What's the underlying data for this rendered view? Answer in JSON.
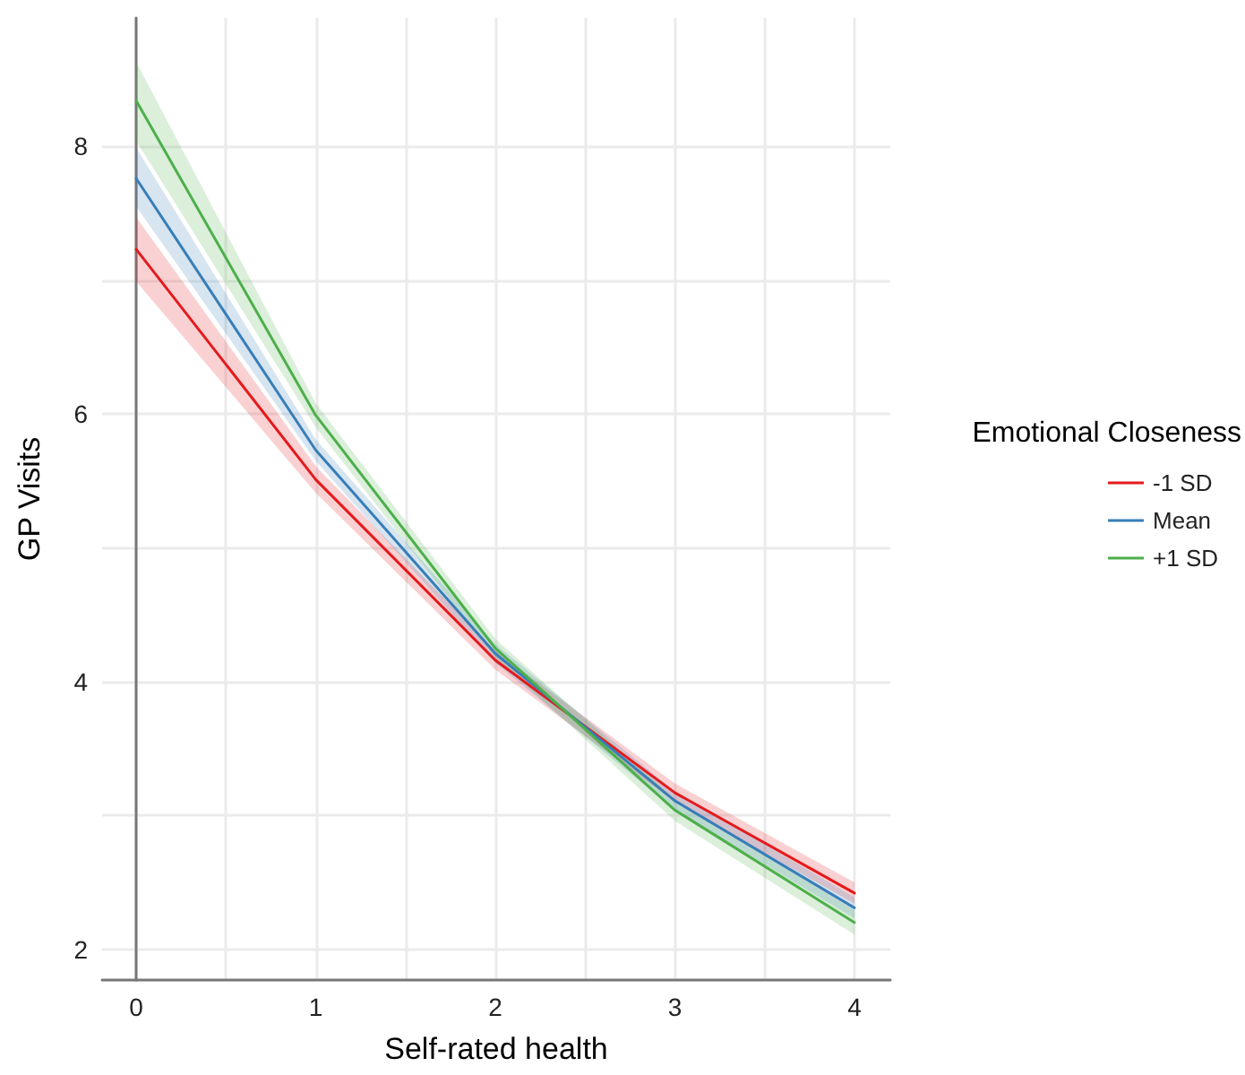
{
  "chart_data": {
    "type": "line",
    "xlabel": "Self-rated health",
    "ylabel": "GP Visits",
    "legend_title": "Emotional Closeness",
    "legend": "right",
    "x": [
      0,
      1,
      2,
      3,
      4
    ],
    "series": [
      {
        "name": "-1 SD",
        "color": "#e41a1c",
        "values": [
          7.23,
          5.51,
          4.16,
          3.17,
          2.42
        ],
        "lower": [
          6.99,
          5.41,
          4.09,
          3.1,
          2.34
        ],
        "upper": [
          7.47,
          5.61,
          4.23,
          3.24,
          2.5
        ]
      },
      {
        "name": "Mean",
        "color": "#377eb8",
        "values": [
          7.76,
          5.73,
          4.21,
          3.11,
          2.31
        ],
        "lower": [
          7.55,
          5.65,
          4.14,
          3.04,
          2.23
        ],
        "upper": [
          7.99,
          5.81,
          4.28,
          3.18,
          2.39
        ]
      },
      {
        "name": "+1 SD",
        "color": "#4daf4a",
        "values": [
          8.34,
          5.99,
          4.25,
          3.04,
          2.2
        ],
        "lower": [
          8.04,
          5.9,
          4.18,
          2.96,
          2.11
        ],
        "upper": [
          8.63,
          6.08,
          4.32,
          3.12,
          2.29
        ]
      }
    ],
    "xlim": [
      -0.19,
      4.2
    ],
    "ylim": [
      1.77,
      8.96
    ],
    "xticks": [
      0,
      {
        "value": 0.5,
        "label": null
      },
      1,
      {
        "value": 1.5,
        "label": null
      },
      2,
      {
        "value": 2.5,
        "label": null
      },
      3,
      {
        "value": 3.5,
        "label": null
      },
      4
    ],
    "yticks": [
      2,
      {
        "value": 3,
        "label": null
      },
      4,
      {
        "value": 5,
        "label": null
      },
      6,
      {
        "value": 7,
        "label": null
      },
      8
    ],
    "grid": true,
    "marker": "none",
    "line_style": "solid"
  }
}
